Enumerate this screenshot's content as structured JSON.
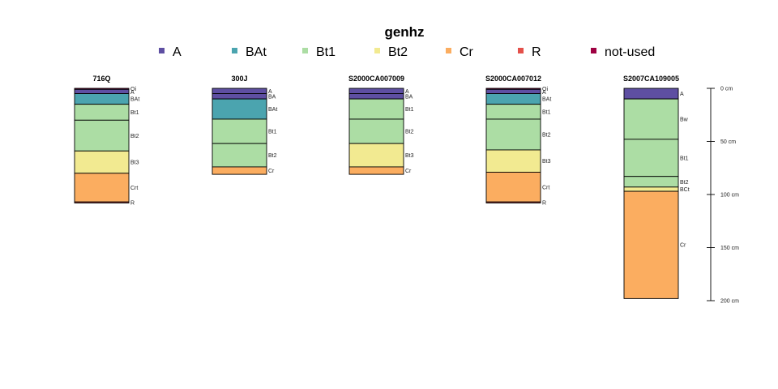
{
  "chart_data": {
    "type": "soil-profile-sketch",
    "legend": {
      "title": "genhz",
      "items": [
        {
          "label": "A",
          "color": "#5E4FA2"
        },
        {
          "label": "BAt",
          "color": "#4BA4AF"
        },
        {
          "label": "Bt1",
          "color": "#ACDDA4"
        },
        {
          "label": "Bt2",
          "color": "#F2EA91"
        },
        {
          "label": "Cr",
          "color": "#FBAD60"
        },
        {
          "label": "R",
          "color": "#E4504A"
        },
        {
          "label": "not-used",
          "color": "#9E0142"
        }
      ]
    },
    "depth_axis": {
      "unit": "cm",
      "ticks": [
        {
          "value": 0,
          "label": "0 cm"
        },
        {
          "value": 50,
          "label": "50 cm"
        },
        {
          "value": 100,
          "label": "100 cm"
        },
        {
          "value": 150,
          "label": "150 cm"
        },
        {
          "value": 200,
          "label": "200 cm"
        }
      ]
    },
    "profiles": [
      {
        "id": "716Q",
        "horizons": [
          {
            "name": "Oi",
            "top": 0,
            "bottom": 1,
            "genhz": "not-used"
          },
          {
            "name": "A",
            "top": 1,
            "bottom": 5,
            "genhz": "A"
          },
          {
            "name": "BAt",
            "top": 5,
            "bottom": 15,
            "genhz": "BAt"
          },
          {
            "name": "Bt1",
            "top": 15,
            "bottom": 30,
            "genhz": "Bt1"
          },
          {
            "name": "Bt2",
            "top": 30,
            "bottom": 59,
            "genhz": "Bt1"
          },
          {
            "name": "Bt3",
            "top": 59,
            "bottom": 80,
            "genhz": "Bt2"
          },
          {
            "name": "Crt",
            "top": 80,
            "bottom": 107,
            "genhz": "Cr"
          },
          {
            "name": "R",
            "top": 107,
            "bottom": 108,
            "genhz": "R"
          }
        ]
      },
      {
        "id": "300J",
        "horizons": [
          {
            "name": "A",
            "top": 0,
            "bottom": 5,
            "genhz": "A"
          },
          {
            "name": "BA",
            "top": 5,
            "bottom": 10,
            "genhz": "A"
          },
          {
            "name": "BAt",
            "top": 10,
            "bottom": 29,
            "genhz": "BAt"
          },
          {
            "name": "Bt1",
            "top": 29,
            "bottom": 52,
            "genhz": "Bt1"
          },
          {
            "name": "Bt2",
            "top": 52,
            "bottom": 74,
            "genhz": "Bt1"
          },
          {
            "name": "Cr",
            "top": 74,
            "bottom": 81,
            "genhz": "Cr"
          }
        ]
      },
      {
        "id": "S2000CA007009",
        "horizons": [
          {
            "name": "A",
            "top": 0,
            "bottom": 5,
            "genhz": "A"
          },
          {
            "name": "BA",
            "top": 5,
            "bottom": 10,
            "genhz": "A"
          },
          {
            "name": "Bt1",
            "top": 10,
            "bottom": 29,
            "genhz": "Bt1"
          },
          {
            "name": "Bt2",
            "top": 29,
            "bottom": 52,
            "genhz": "Bt1"
          },
          {
            "name": "Bt3",
            "top": 52,
            "bottom": 74,
            "genhz": "Bt2"
          },
          {
            "name": "Cr",
            "top": 74,
            "bottom": 81,
            "genhz": "Cr"
          }
        ]
      },
      {
        "id": "S2000CA007012",
        "horizons": [
          {
            "name": "Oi",
            "top": 0,
            "bottom": 1,
            "genhz": "not-used"
          },
          {
            "name": "A",
            "top": 1,
            "bottom": 5,
            "genhz": "A"
          },
          {
            "name": "BAt",
            "top": 5,
            "bottom": 15,
            "genhz": "BAt"
          },
          {
            "name": "Bt1",
            "top": 15,
            "bottom": 29,
            "genhz": "Bt1"
          },
          {
            "name": "Bt2",
            "top": 29,
            "bottom": 58,
            "genhz": "Bt1"
          },
          {
            "name": "Bt3",
            "top": 58,
            "bottom": 79,
            "genhz": "Bt2"
          },
          {
            "name": "Crt",
            "top": 79,
            "bottom": 107,
            "genhz": "Cr"
          },
          {
            "name": "R",
            "top": 107,
            "bottom": 108,
            "genhz": "R"
          }
        ]
      },
      {
        "id": "S2007CA109005",
        "horizons": [
          {
            "name": "A",
            "top": 0,
            "bottom": 10,
            "genhz": "A"
          },
          {
            "name": "Bw",
            "top": 10,
            "bottom": 48,
            "genhz": "Bt1"
          },
          {
            "name": "Bt1",
            "top": 48,
            "bottom": 83,
            "genhz": "Bt1"
          },
          {
            "name": "Bt2",
            "top": 83,
            "bottom": 93,
            "genhz": "Bt1"
          },
          {
            "name": "BCt",
            "top": 93,
            "bottom": 97,
            "genhz": "Bt2"
          },
          {
            "name": "Cr",
            "top": 97,
            "bottom": 198,
            "genhz": "Cr"
          }
        ]
      }
    ]
  }
}
